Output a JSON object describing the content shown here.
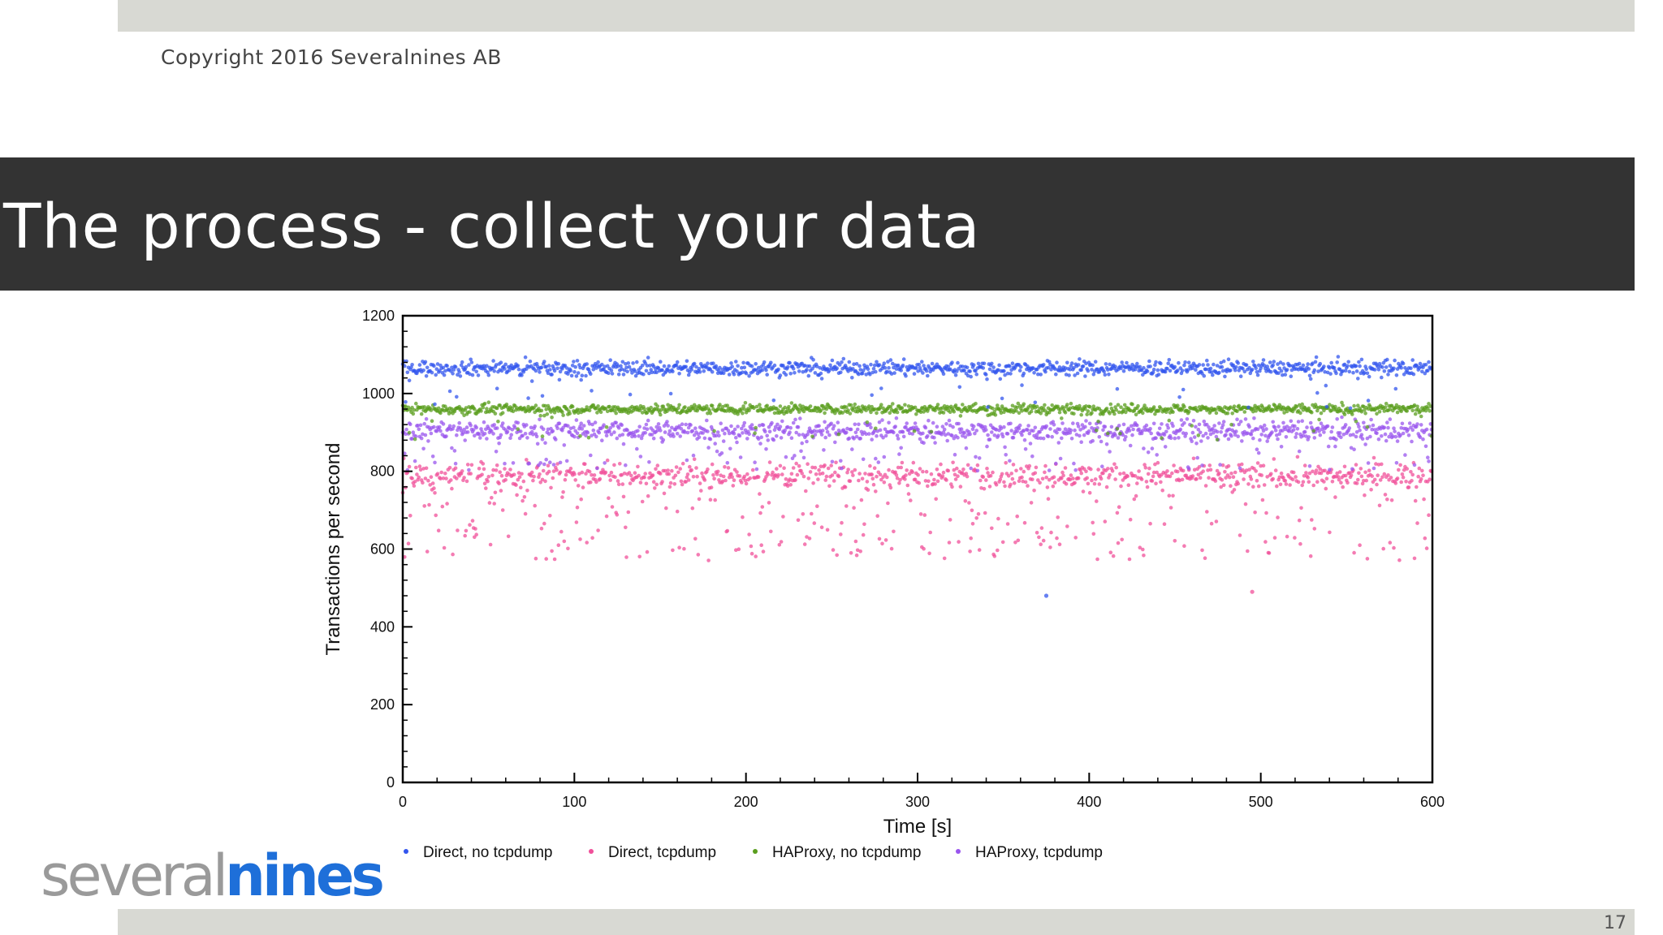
{
  "header": {
    "copyright": "Copyright 2016 Severalnines AB"
  },
  "slide": {
    "title": "The process - collect your data",
    "page_number": "17"
  },
  "logo": {
    "part_a": "several",
    "part_b": "nines",
    "colors": {
      "part_a": "#9a9a9a",
      "part_b": "#1e6fd9"
    }
  },
  "chart_data": {
    "type": "scatter",
    "title": "",
    "xlabel": "Time [s]",
    "ylabel": "Transactions per second",
    "xlim": [
      0,
      600
    ],
    "ylim": [
      0,
      1200
    ],
    "xticks": [
      0,
      100,
      200,
      300,
      400,
      500,
      600
    ],
    "yticks": [
      0,
      200,
      400,
      600,
      800,
      1000,
      1200
    ],
    "grid": false,
    "legend_position": "bottom",
    "series": [
      {
        "name": "Direct, no tcpdump",
        "color": "#3355ee",
        "center": 1065,
        "spread": 22,
        "outlier_rate": 0.03,
        "outlier_min": 960
      },
      {
        "name": "Direct, tcpdump",
        "color": "#f0509a",
        "center": 790,
        "spread": 35,
        "outlier_rate": 0.28,
        "outlier_min": 570
      },
      {
        "name": "HAProxy, no tcpdump",
        "color": "#5a9e1e",
        "center": 960,
        "spread": 14,
        "outlier_rate": 0.04,
        "outlier_min": 880
      },
      {
        "name": "HAProxy, tcpdump",
        "color": "#9955ee",
        "center": 905,
        "spread": 28,
        "outlier_rate": 0.15,
        "outlier_min": 800
      }
    ],
    "notes_outliers": [
      {
        "series": "Direct, no tcpdump",
        "x": 375,
        "y": 480
      },
      {
        "series": "Direct, tcpdump",
        "x": 495,
        "y": 490
      }
    ]
  }
}
